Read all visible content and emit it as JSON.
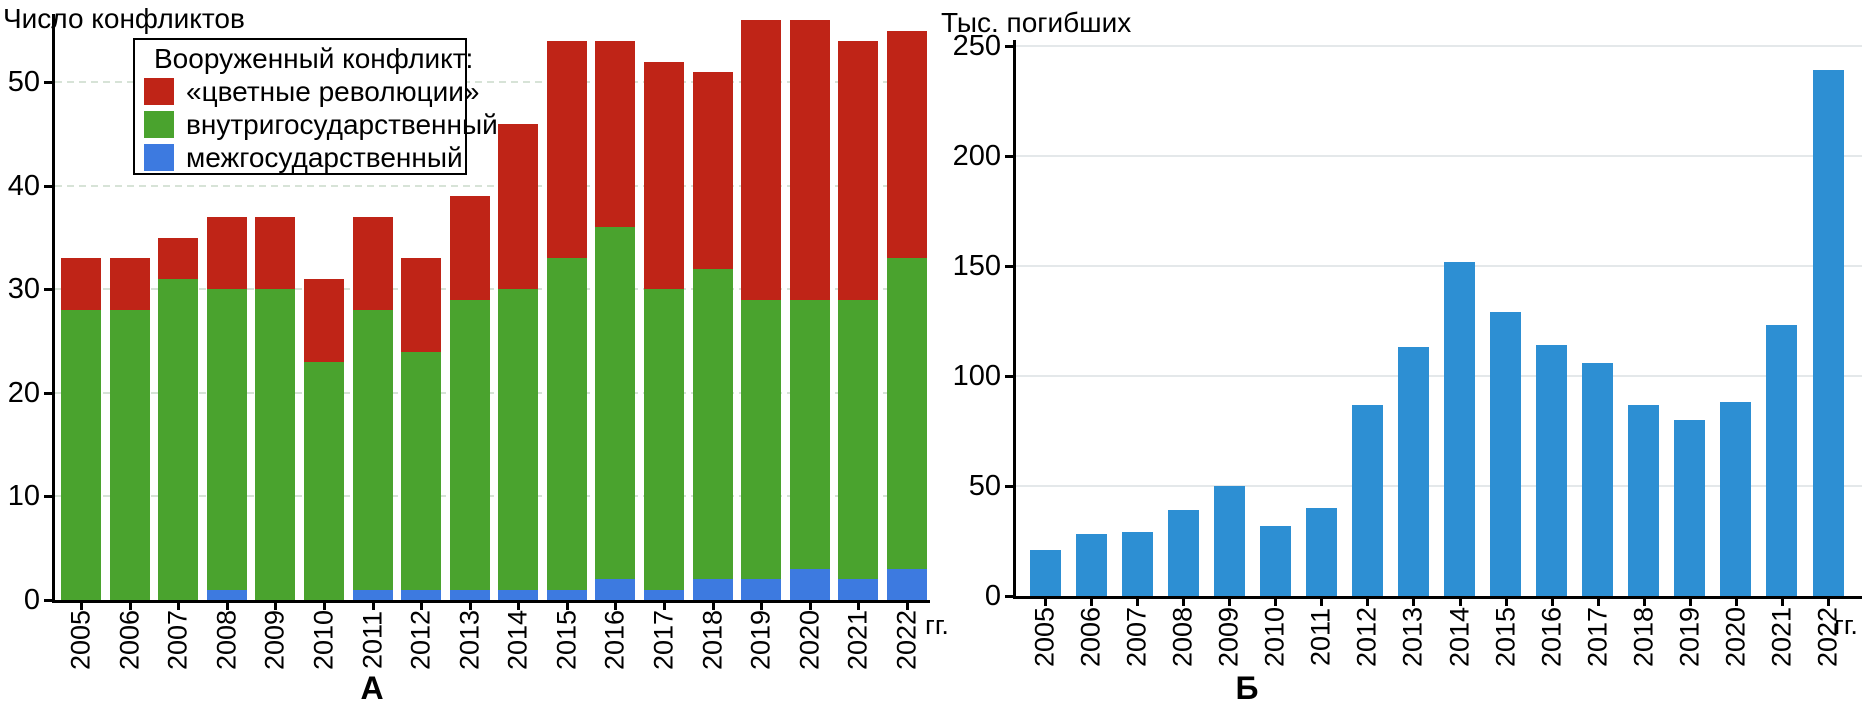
{
  "page": {
    "background": "#ffffff"
  },
  "chart_data": [
    {
      "id": "A",
      "type": "bar",
      "stacked": true,
      "title": "Число конфликтов",
      "ylabel": "Число конфликтов",
      "panel_label": "А",
      "x_suffix_label": "гг.",
      "categories": [
        "2005",
        "2006",
        "2007",
        "2008",
        "2009",
        "2010",
        "2011",
        "2012",
        "2013",
        "2014",
        "2015",
        "2016",
        "2017",
        "2018",
        "2019",
        "2020",
        "2021",
        "2022"
      ],
      "series": [
        {
          "name": "межгосударственный",
          "color": "#3d7ae0",
          "values": [
            0,
            0,
            0,
            1,
            0,
            0,
            1,
            1,
            1,
            1,
            1,
            2,
            1,
            2,
            2,
            3,
            2,
            3
          ]
        },
        {
          "name": "внутригосударственный",
          "color": "#4aa32e",
          "values": [
            28,
            28,
            31,
            29,
            30,
            23,
            27,
            23,
            28,
            29,
            32,
            34,
            29,
            30,
            27,
            26,
            27,
            30
          ]
        },
        {
          "name": "«цветные революции»",
          "color": "#bf2417",
          "values": [
            5,
            5,
            4,
            7,
            7,
            8,
            9,
            9,
            10,
            16,
            21,
            18,
            22,
            19,
            27,
            27,
            25,
            22
          ]
        }
      ],
      "legend": {
        "title": "Вооруженный конфликт:",
        "items": [
          {
            "label": "«цветные революции»",
            "color": "#bf2417"
          },
          {
            "label": "внутригосударственный",
            "color": "#4aa32e"
          },
          {
            "label": "межгосударственный",
            "color": "#3d7ae0"
          }
        ]
      },
      "ylim": [
        0,
        56.6
      ],
      "yticks": [
        0,
        10,
        20,
        30,
        40,
        50
      ],
      "grid": "dashed",
      "legend_position": "top-left-inside"
    },
    {
      "id": "B",
      "type": "bar",
      "stacked": false,
      "title": "Тыс. погибших",
      "ylabel": "Тыс. погибших",
      "panel_label": "Б",
      "x_suffix_label": "гг.",
      "categories": [
        "2005",
        "2006",
        "2007",
        "2008",
        "2009",
        "2010",
        "2011",
        "2012",
        "2013",
        "2014",
        "2015",
        "2016",
        "2017",
        "2018",
        "2019",
        "2020",
        "2021",
        "2022"
      ],
      "series": [
        {
          "name": "Тыс. погибших",
          "color": "#2d8fd3",
          "values": [
            21,
            28,
            29,
            39,
            50,
            32,
            40,
            87,
            113,
            152,
            129,
            114,
            106,
            87,
            80,
            88,
            123,
            239
          ]
        }
      ],
      "ylim": [
        0,
        250
      ],
      "yticks": [
        0,
        50,
        100,
        150,
        200,
        250
      ],
      "grid": "solid",
      "legend_position": "none"
    }
  ]
}
